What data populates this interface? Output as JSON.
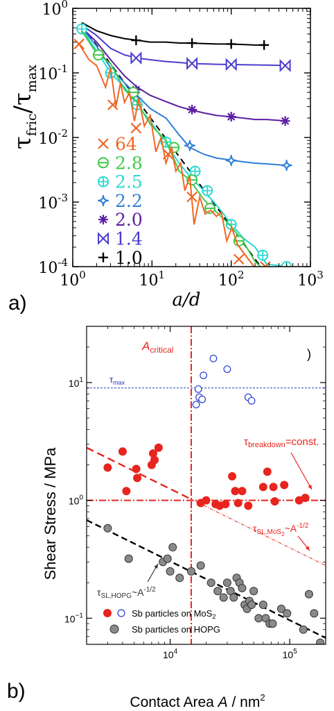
{
  "panel_labels": {
    "a": "a)",
    "b": "b)"
  },
  "chart_data": [
    {
      "id": "a",
      "type": "line",
      "xscale": "log",
      "yscale": "log",
      "xlabel": "a/d",
      "ylabel_main": "τ",
      "ylabel_sub1": "fric",
      "ylabel_slash": "/τ",
      "ylabel_sub2": "max",
      "xlim": [
        1,
        1000
      ],
      "ylim": [
        0.0001,
        1
      ],
      "xticks": [
        {
          "value": 1,
          "base": "10",
          "exp": "0"
        },
        {
          "value": 10,
          "base": "10",
          "exp": "1"
        },
        {
          "value": 100,
          "base": "10",
          "exp": "2"
        },
        {
          "value": 1000,
          "base": "10",
          "exp": "3"
        }
      ],
      "yticks": [
        {
          "value": 1,
          "base": "10",
          "exp": "0"
        },
        {
          "value": 0.1,
          "base": "10",
          "exp": "-1"
        },
        {
          "value": 0.01,
          "base": "10",
          "exp": "-2"
        },
        {
          "value": 0.001,
          "base": "10",
          "exp": "-3"
        },
        {
          "value": 0.0001,
          "base": "10",
          "exp": "-4"
        }
      ],
      "legend_position": "left",
      "reference_line": {
        "style": "dashed",
        "color": "#000000",
        "x": [
          1.3,
          280
        ],
        "y": [
          0.55,
          7.5e-05
        ]
      },
      "series": [
        {
          "name": "64",
          "color": "#f26522",
          "marker": "x",
          "x": [
            1.2,
            1.6,
            2.0,
            2.6,
            3.0,
            3.5,
            4.0,
            4.5,
            5.2,
            6.0,
            6.8,
            8.0,
            9.5,
            11.2,
            13,
            15,
            17.5,
            20,
            23,
            26,
            30,
            34,
            40,
            47,
            55,
            65,
            75,
            88,
            102,
            120,
            140,
            165,
            195,
            230
          ],
          "y": [
            0.28,
            0.16,
            0.13,
            0.06,
            0.12,
            0.03,
            0.07,
            0.035,
            0.05,
            0.018,
            0.04,
            0.015,
            0.022,
            0.006,
            0.01,
            0.004,
            0.007,
            0.003,
            0.004,
            0.0015,
            0.0025,
            0.00045,
            0.0012,
            0.00065,
            0.00075,
            0.0006,
            0.0007,
            0.00025,
            0.0004,
            0.00022,
            0.00017,
            0.00013,
            0.0001,
            8e-05
          ],
          "marker_x": [
            1.2,
            3.2,
            6.3,
            16,
            32,
            125,
            270
          ],
          "marker_y": [
            0.28,
            0.032,
            0.014,
            0.0055,
            0.0012,
            0.00013,
            0.0001
          ]
        },
        {
          "name": "2.8",
          "color": "#3ec94a",
          "marker": "half-circle",
          "x": [
            1.3,
            2.0,
            3.0,
            4.5,
            6.5,
            9.5,
            15,
            22,
            30,
            45,
            65,
            95,
            140,
            200,
            280
          ],
          "y": [
            0.45,
            0.2,
            0.14,
            0.055,
            0.035,
            0.016,
            0.009,
            0.003,
            0.0022,
            0.0011,
            0.0007,
            0.00045,
            0.00025,
            0.00012,
            8e-05
          ],
          "marker_x": [
            2.1,
            5.8,
            19,
            32,
            54,
            125
          ],
          "marker_y": [
            0.19,
            0.05,
            0.007,
            0.0022,
            0.0008,
            0.00025
          ]
        },
        {
          "name": "2.5",
          "color": "#2ad8d1",
          "marker": "circle-plus",
          "x": [
            1.3,
            2.0,
            3.0,
            4.5,
            6.5,
            9.5,
            15,
            22,
            30,
            45,
            65,
            95,
            140,
            200,
            280,
            500
          ],
          "y": [
            0.48,
            0.22,
            0.1,
            0.06,
            0.032,
            0.018,
            0.008,
            0.004,
            0.0025,
            0.0015,
            0.0009,
            0.0005,
            0.00028,
            0.0002,
            0.00011,
            0.0001
          ],
          "marker_x": [
            1.3,
            3.0,
            6.5,
            15,
            35,
            50,
            100,
            250,
            500
          ],
          "marker_y": [
            0.48,
            0.1,
            0.032,
            0.0085,
            0.003,
            0.0015,
            0.00045,
            0.00015,
            0.0001
          ]
        },
        {
          "name": "2.2",
          "color": "#2e7fd6",
          "marker": "star4",
          "x": [
            1.3,
            2.0,
            3.0,
            4.5,
            6.5,
            9.5,
            15,
            22,
            30,
            45,
            65,
            95,
            140,
            200,
            280,
            500
          ],
          "y": [
            0.5,
            0.26,
            0.12,
            0.07,
            0.045,
            0.028,
            0.02,
            0.011,
            0.007,
            0.0055,
            0.0048,
            0.0045,
            0.0042,
            0.004,
            0.0039,
            0.0037
          ],
          "marker_x": [
            6.3,
            30,
            100,
            500
          ],
          "marker_y": [
            0.04,
            0.0075,
            0.0044,
            0.0037
          ]
        },
        {
          "name": "2.0",
          "color": "#5b1fa3",
          "marker": "asterisk",
          "x": [
            1.3,
            2.0,
            3.0,
            4.5,
            6.5,
            9.5,
            15,
            22,
            30,
            45,
            65,
            95,
            140,
            200,
            280,
            500
          ],
          "y": [
            0.5,
            0.3,
            0.16,
            0.09,
            0.06,
            0.045,
            0.036,
            0.03,
            0.027,
            0.024,
            0.022,
            0.021,
            0.02,
            0.019,
            0.019,
            0.018
          ],
          "marker_x": [
            6.3,
            32,
            100,
            480
          ],
          "marker_y": [
            0.055,
            0.027,
            0.021,
            0.018
          ]
        },
        {
          "name": "1.4",
          "color": "#4b3ccf",
          "marker": "bowtie",
          "x": [
            1.3,
            2.0,
            3.0,
            4.5,
            6.5,
            9.5,
            15,
            22,
            30,
            45,
            65,
            95,
            140,
            200,
            280,
            500
          ],
          "y": [
            0.55,
            0.38,
            0.24,
            0.19,
            0.17,
            0.16,
            0.15,
            0.145,
            0.14,
            0.138,
            0.136,
            0.135,
            0.134,
            0.133,
            0.132,
            0.13
          ],
          "marker_x": [
            6.3,
            32,
            100,
            480
          ],
          "marker_y": [
            0.17,
            0.14,
            0.135,
            0.13
          ]
        },
        {
          "name": "1.0",
          "color": "#000000",
          "marker": "plus",
          "x": [
            1.3,
            2.0,
            3.0,
            4.5,
            6.5,
            9.5,
            15,
            22,
            30,
            45,
            65,
            95,
            140,
            200,
            260
          ],
          "y": [
            0.6,
            0.45,
            0.38,
            0.34,
            0.32,
            0.3,
            0.3,
            0.29,
            0.29,
            0.285,
            0.28,
            0.28,
            0.275,
            0.27,
            0.27
          ],
          "marker_x": [
            6.3,
            32,
            100,
            260
          ],
          "marker_y": [
            0.32,
            0.29,
            0.28,
            0.27
          ]
        }
      ]
    },
    {
      "id": "b",
      "type": "scatter",
      "xscale": "log",
      "yscale": "log",
      "xlabel_pre": "Contact Area ",
      "xlabel_var": "A",
      "xlabel_post": " / nm",
      "xlabel_sup": "2",
      "ylabel": "Shear Stress / MPa",
      "xlim": [
        2000,
        200000
      ],
      "ylim": [
        0.06,
        30
      ],
      "xticks": [
        {
          "value": 10000,
          "base": "10",
          "exp": "4"
        },
        {
          "value": 100000,
          "base": "10",
          "exp": "5"
        }
      ],
      "yticks": [
        {
          "value": 0.1,
          "base": "10",
          "exp": "−1"
        },
        {
          "value": 1,
          "base": "10",
          "exp": "0"
        },
        {
          "value": 10,
          "base": "10",
          "exp": "1"
        }
      ],
      "annotations": {
        "a_critical": {
          "main": "A",
          "sub": "critical",
          "color": "#e8241f"
        },
        "tau_max": {
          "main": "τ",
          "sub": "max",
          "color": "#1f3fbf"
        },
        "tau_breakdown": {
          "main": "τ",
          "sub": "breakdown",
          "tail": "=const.",
          "color": "#e8241f"
        },
        "tau_sl_mos2": {
          "main": "τ",
          "sub": "SL,MoS",
          "sub2": "2",
          "tail": "~A",
          "sup": "-1/2",
          "color": "#e8241f"
        },
        "tau_sl_hopg": {
          "main": "τ",
          "sub": "SL,HOPG",
          "tail": "~A",
          "sup": "-1/2",
          "color": "#333333"
        }
      },
      "legend_position": "bottom-left",
      "legend": [
        {
          "label_pre": "Sb particles on MoS",
          "label_sub": "2",
          "color": "#e8241f",
          "open_color": "#2a3fd6"
        },
        {
          "label_pre": "Sb particles on HOPG",
          "label_sub": "",
          "color": "#8a8a8a"
        }
      ],
      "lines": {
        "a_critical_x": 15000,
        "tau_max_y": 9,
        "tau_breakdown_y": 1.0,
        "mos2_fit": {
          "x": [
            2000,
            200000
          ],
          "y": [
            2.8,
            0.28
          ]
        },
        "hopg_fit": {
          "x": [
            2000,
            200000
          ],
          "y": [
            0.68,
            0.068
          ]
        }
      },
      "series": [
        {
          "name": "Sb on MoS2 (open)",
          "color": "#2a3fd6",
          "filled": false,
          "x": [
            16500,
            17500,
            18500,
            19000,
            17200,
            23000,
            30000,
            45000,
            48000
          ],
          "y": [
            6.5,
            7.5,
            7.2,
            11.5,
            8.8,
            16,
            13,
            7.5,
            7.0
          ]
        },
        {
          "name": "Sb on MoS2 (filled)",
          "color": "#e8241f",
          "filled": true,
          "x": [
            3000,
            4000,
            4300,
            5200,
            5300,
            7000,
            7200,
            7400,
            8000,
            18000,
            20000,
            24000,
            26000,
            29000,
            33000,
            35000,
            37000,
            40000,
            45000,
            60000,
            65000,
            73000,
            75000,
            90000,
            120000,
            135000
          ],
          "y": [
            1.9,
            2.6,
            1.2,
            1.85,
            1.55,
            2.0,
            2.5,
            2.2,
            2.8,
            0.95,
            1.0,
            0.93,
            0.9,
            0.93,
            1.6,
            1.2,
            0.95,
            1.2,
            0.9,
            1.3,
            1.75,
            1.3,
            0.98,
            1.35,
            1.0,
            1.05
          ],
          "fit_label": ""
        },
        {
          "name": "Sb on HOPG",
          "color": "#8a8a8a",
          "filled": true,
          "x": [
            3000,
            4500,
            8700,
            9500,
            10000,
            10500,
            12000,
            15000,
            18000,
            22000,
            25000,
            28000,
            30000,
            32000,
            34000,
            36000,
            38000,
            40000,
            42000,
            44000,
            46000,
            48000,
            50000,
            55000,
            60000,
            63000,
            68000,
            72000,
            85000,
            95000,
            130000,
            145000,
            160000,
            180000
          ],
          "y": [
            0.58,
            0.32,
            0.3,
            0.32,
            0.25,
            0.4,
            0.22,
            0.25,
            0.28,
            0.2,
            0.17,
            0.15,
            0.2,
            0.17,
            0.15,
            0.22,
            0.2,
            0.18,
            0.13,
            0.12,
            0.14,
            0.13,
            0.17,
            0.1,
            0.13,
            0.1,
            0.09,
            0.09,
            0.12,
            0.11,
            0.08,
            0.16,
            0.11,
            0.062
          ]
        }
      ]
    }
  ]
}
